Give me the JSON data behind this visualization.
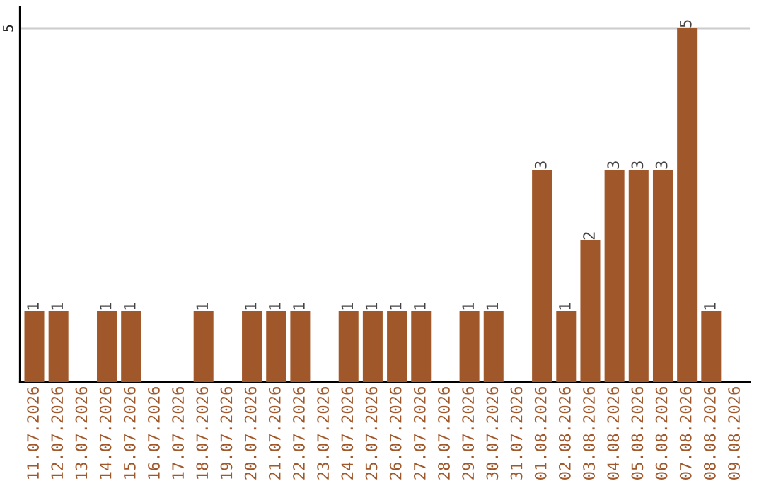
{
  "chart_data": {
    "type": "bar",
    "categories": [
      "11.07.2026",
      "12.07.2026",
      "13.07.2026",
      "14.07.2026",
      "15.07.2026",
      "16.07.2026",
      "17.07.2026",
      "18.07.2026",
      "19.07.2026",
      "20.07.2026",
      "21.07.2026",
      "22.07.2026",
      "23.07.2026",
      "24.07.2026",
      "25.07.2026",
      "26.07.2026",
      "27.07.2026",
      "28.07.2026",
      "29.07.2026",
      "30.07.2026",
      "31.07.2026",
      "01.08.2026",
      "02.08.2026",
      "03.08.2026",
      "04.08.2026",
      "05.08.2026",
      "06.08.2026",
      "07.08.2026",
      "08.08.2026",
      "09.08.2026"
    ],
    "values": [
      1,
      1,
      0,
      1,
      1,
      0,
      0,
      1,
      0,
      1,
      1,
      1,
      0,
      1,
      1,
      1,
      1,
      0,
      1,
      1,
      0,
      3,
      1,
      2,
      3,
      3,
      3,
      5,
      1,
      0
    ],
    "value_labels": [
      "1",
      "1",
      null,
      "1",
      "1",
      null,
      null,
      "1",
      null,
      "1",
      "1",
      "1",
      null,
      "1",
      "1",
      "1",
      "1",
      null,
      "1",
      "1",
      null,
      "3",
      "1",
      "2",
      "3",
      "3",
      "3",
      "5",
      "1",
      null
    ],
    "color": "#a0582a",
    "ylim": [
      0,
      5.3
    ],
    "yticks": [
      5
    ],
    "grid": "y"
  }
}
